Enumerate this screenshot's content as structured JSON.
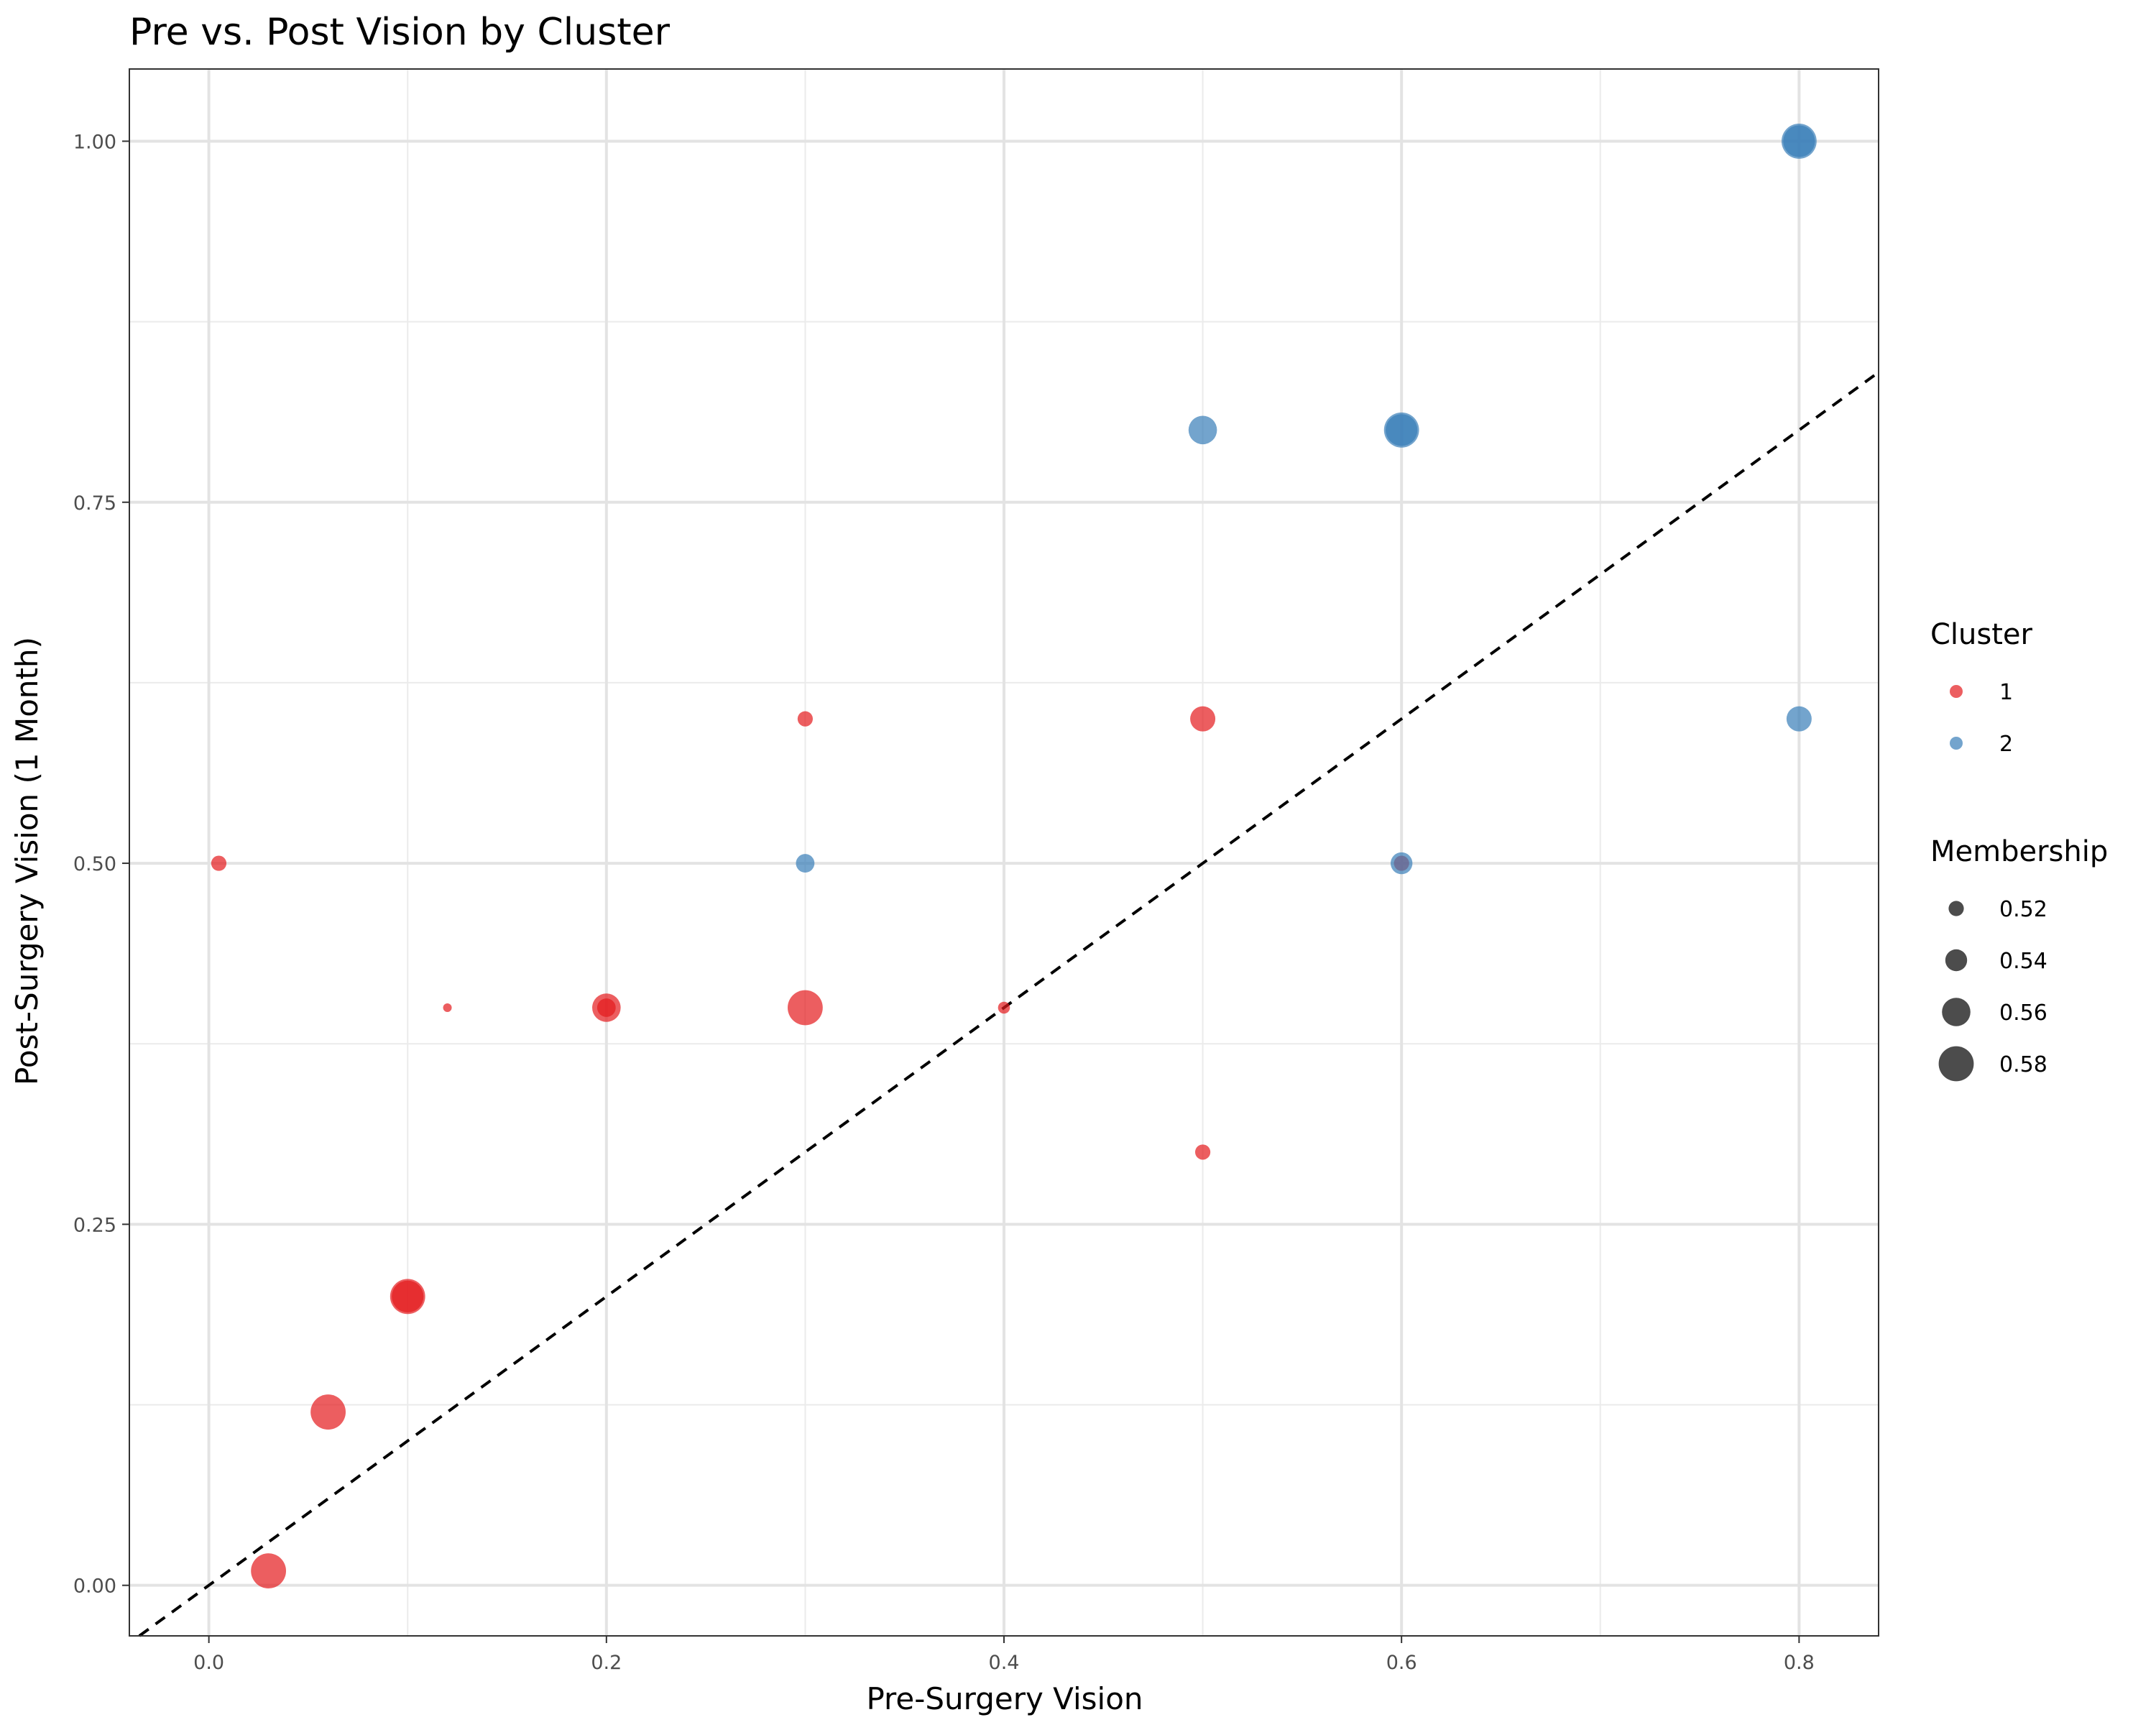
{
  "chart_data": {
    "type": "scatter",
    "title": "Pre vs. Post Vision by Cluster",
    "xlabel": "Pre-Surgery Vision",
    "ylabel": "Post-Surgery Vision (1 Month)",
    "xlim": [
      -0.04,
      0.84
    ],
    "ylim": [
      -0.035,
      1.05
    ],
    "x_ticks": [
      0.0,
      0.2,
      0.4,
      0.6,
      0.8
    ],
    "x_tick_labels": [
      "0.0",
      "0.2",
      "0.4",
      "0.6",
      "0.8"
    ],
    "y_ticks": [
      0.0,
      0.25,
      0.5,
      0.75,
      1.0
    ],
    "y_tick_labels": [
      "0.00",
      "0.25",
      "0.50",
      "0.75",
      "1.00"
    ],
    "grid": true,
    "reference_line": {
      "type": "identity",
      "style": "dashed",
      "color": "#000000"
    },
    "legend_position": "right",
    "series": [
      {
        "name": "1",
        "color": "#e41a1c",
        "points": [
          {
            "x": 0.005,
            "y": 0.5,
            "membership": 0.52
          },
          {
            "x": 0.03,
            "y": 0.01,
            "membership": 0.58
          },
          {
            "x": 0.06,
            "y": 0.12,
            "membership": 0.58
          },
          {
            "x": 0.1,
            "y": 0.2,
            "membership": 0.58
          },
          {
            "x": 0.1,
            "y": 0.2,
            "membership": 0.57
          },
          {
            "x": 0.12,
            "y": 0.4,
            "membership": 0.5
          },
          {
            "x": 0.2,
            "y": 0.4,
            "membership": 0.56
          },
          {
            "x": 0.2,
            "y": 0.4,
            "membership": 0.53
          },
          {
            "x": 0.3,
            "y": 0.6,
            "membership": 0.52
          },
          {
            "x": 0.3,
            "y": 0.4,
            "membership": 0.58
          },
          {
            "x": 0.4,
            "y": 0.4,
            "membership": 0.51
          },
          {
            "x": 0.5,
            "y": 0.6,
            "membership": 0.55
          },
          {
            "x": 0.5,
            "y": 0.3,
            "membership": 0.52
          },
          {
            "x": 0.6,
            "y": 0.5,
            "membership": 0.52
          }
        ]
      },
      {
        "name": "2",
        "color": "#377eb8",
        "points": [
          {
            "x": 0.3,
            "y": 0.5,
            "membership": 0.53
          },
          {
            "x": 0.5,
            "y": 0.8,
            "membership": 0.56
          },
          {
            "x": 0.6,
            "y": 0.8,
            "membership": 0.58
          },
          {
            "x": 0.6,
            "y": 0.8,
            "membership": 0.57
          },
          {
            "x": 0.6,
            "y": 0.5,
            "membership": 0.54
          },
          {
            "x": 0.8,
            "y": 1.0,
            "membership": 0.58
          },
          {
            "x": 0.8,
            "y": 1.0,
            "membership": 0.57
          },
          {
            "x": 0.8,
            "y": 0.6,
            "membership": 0.55
          }
        ]
      }
    ],
    "legends": {
      "cluster": {
        "title": "Cluster",
        "entries": [
          {
            "label": "1",
            "color": "#e41a1c"
          },
          {
            "label": "2",
            "color": "#377eb8"
          }
        ]
      },
      "membership": {
        "title": "Membership",
        "entries": [
          {
            "label": "0.52",
            "value": 0.52
          },
          {
            "label": "0.54",
            "value": 0.54
          },
          {
            "label": "0.56",
            "value": 0.56
          },
          {
            "label": "0.58",
            "value": 0.58
          }
        ]
      }
    }
  }
}
